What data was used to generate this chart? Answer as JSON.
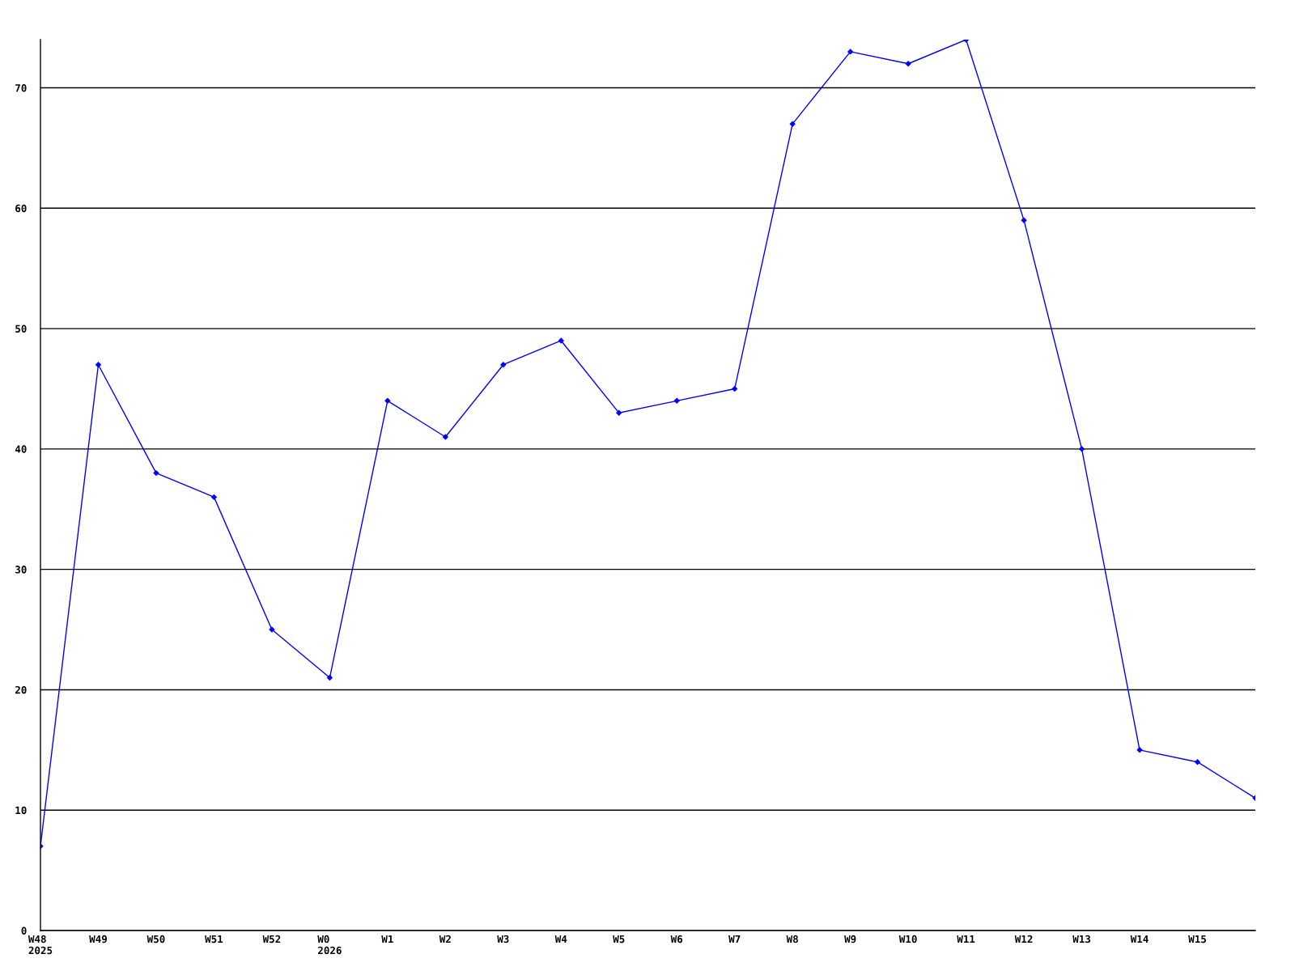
{
  "chart_data": {
    "type": "line",
    "categories": [
      "W48\n2025",
      "W49",
      "W50",
      "W51",
      "W52",
      "W0\n2026",
      "W1",
      "W2",
      "W3",
      "W4",
      "W5",
      "W6",
      "W7",
      "W8",
      "W9",
      "W10",
      "W11",
      "W12",
      "W13",
      "W14",
      "W15",
      null
    ],
    "series": [
      {
        "color": "#0000ff",
        "values": [
          7,
          47,
          38,
          36,
          25,
          21,
          44,
          41,
          47,
          49,
          43,
          44,
          45,
          67,
          73,
          72,
          74,
          59,
          40,
          15,
          14,
          11
        ]
      }
    ],
    "ylim": [
      0,
      74
    ],
    "yticks": [
      0,
      10,
      20,
      30,
      40,
      50,
      60,
      70
    ],
    "grid": "y",
    "marker": "diamond",
    "line_style": "solid"
  }
}
